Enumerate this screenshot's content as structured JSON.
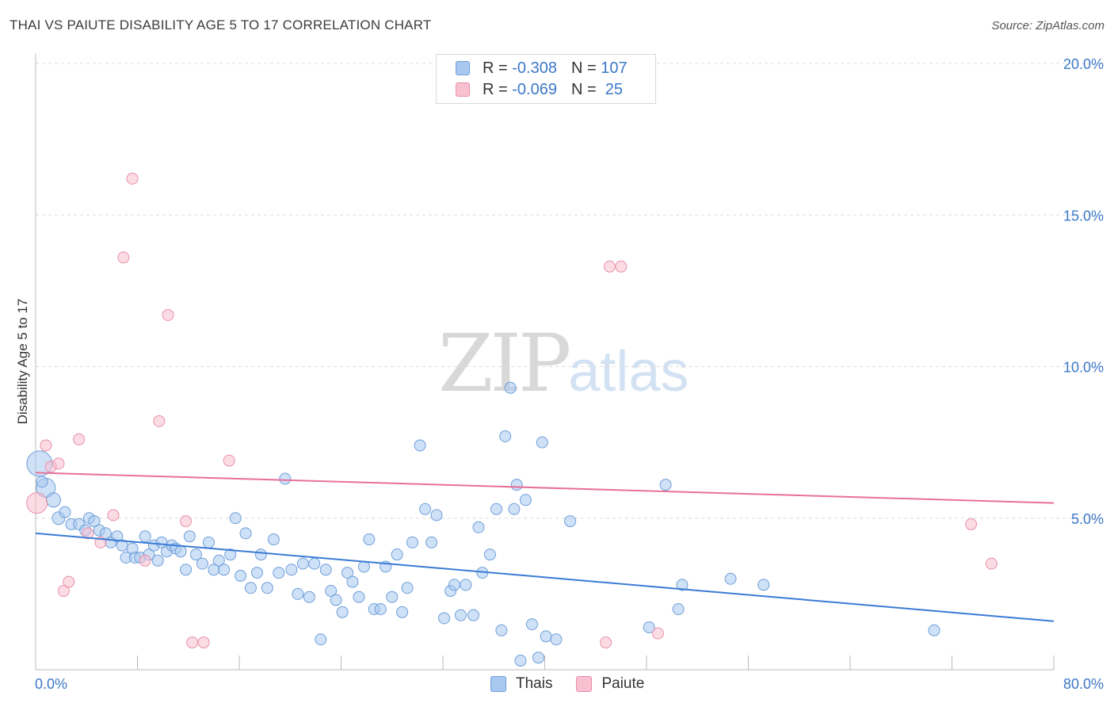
{
  "title": "THAI VS PAIUTE DISABILITY AGE 5 TO 17 CORRELATION CHART",
  "source": "Source: ZipAtlas.com",
  "watermark": {
    "zip": "ZIP",
    "atlas": "atlas"
  },
  "legend": {
    "rows": [
      {
        "r_label": "R = ",
        "r_value": "-0.308",
        "n_label": "N = ",
        "n_value": "107",
        "color": "#a8c8f0",
        "border": "#6f9fd8"
      },
      {
        "r_label": "R = ",
        "r_value": "-0.069",
        "n_label": "N = ",
        "n_value": " 25",
        "color": "#f8c0d0",
        "border": "#e890aa"
      }
    ]
  },
  "bottom_legend": [
    {
      "label": "Thais",
      "color": "#a8c8f0",
      "border": "#6f9fd8"
    },
    {
      "label": "Paiute",
      "color": "#f8c0d0",
      "border": "#e890aa"
    }
  ],
  "chart_data": {
    "type": "scatter",
    "title": "THAI VS PAIUTE DISABILITY AGE 5 TO 17 CORRELATION CHART",
    "xlabel": "",
    "ylabel": "Disability Age 5 to 17",
    "xlim": [
      0,
      80
    ],
    "ylim": [
      0,
      20
    ],
    "x_tick_labels": [
      "0.0%",
      "80.0%"
    ],
    "y_ticks": [
      5,
      10,
      15,
      20
    ],
    "y_tick_labels": [
      "5.0%",
      "10.0%",
      "15.0%",
      "20.0%"
    ],
    "grid": true,
    "colors": {
      "thais": "#3a7bd5",
      "paiute": "#e8709a"
    },
    "series": [
      {
        "name": "Thais",
        "trend": {
          "x": [
            0,
            80
          ],
          "y": [
            4.5,
            1.6
          ]
        },
        "points": [
          [
            0.3,
            6.8,
            16
          ],
          [
            0.8,
            6.0,
            12
          ],
          [
            1.4,
            5.6,
            9
          ],
          [
            1.8,
            5.0,
            8
          ],
          [
            2.3,
            5.2,
            7
          ],
          [
            2.8,
            4.8,
            7
          ],
          [
            3.4,
            4.8,
            7
          ],
          [
            3.9,
            4.6,
            7
          ],
          [
            4.2,
            5.0,
            7
          ],
          [
            4.6,
            4.9,
            7
          ],
          [
            5.0,
            4.6,
            7
          ],
          [
            5.5,
            4.5,
            7
          ],
          [
            5.9,
            4.2,
            7
          ],
          [
            6.4,
            4.4,
            7
          ],
          [
            6.8,
            4.1,
            7
          ],
          [
            7.1,
            3.7,
            7
          ],
          [
            7.6,
            4.0,
            7
          ],
          [
            7.8,
            3.7,
            7
          ],
          [
            8.2,
            3.7,
            7
          ],
          [
            8.6,
            4.4,
            7
          ],
          [
            8.9,
            3.8,
            7
          ],
          [
            9.3,
            4.1,
            7
          ],
          [
            9.6,
            3.6,
            7
          ],
          [
            9.9,
            4.2,
            7
          ],
          [
            10.3,
            3.9,
            7
          ],
          [
            10.7,
            4.1,
            7
          ],
          [
            11.0,
            4.0,
            7
          ],
          [
            11.4,
            3.9,
            7
          ],
          [
            11.8,
            3.3,
            7
          ],
          [
            12.1,
            4.4,
            7
          ],
          [
            12.6,
            3.8,
            7
          ],
          [
            13.1,
            3.5,
            7
          ],
          [
            13.6,
            4.2,
            7
          ],
          [
            14.0,
            3.3,
            7
          ],
          [
            14.4,
            3.6,
            7
          ],
          [
            14.8,
            3.3,
            7
          ],
          [
            15.3,
            3.8,
            7
          ],
          [
            15.7,
            5.0,
            7
          ],
          [
            16.1,
            3.1,
            7
          ],
          [
            16.5,
            4.5,
            7
          ],
          [
            16.9,
            2.7,
            7
          ],
          [
            17.4,
            3.2,
            7
          ],
          [
            17.7,
            3.8,
            7
          ],
          [
            18.2,
            2.7,
            7
          ],
          [
            18.7,
            4.3,
            7
          ],
          [
            19.1,
            3.2,
            7
          ],
          [
            19.6,
            6.3,
            7
          ],
          [
            20.1,
            3.3,
            7
          ],
          [
            20.6,
            2.5,
            7
          ],
          [
            21.0,
            3.5,
            7
          ],
          [
            21.5,
            2.4,
            7
          ],
          [
            21.9,
            3.5,
            7
          ],
          [
            22.4,
            1.0,
            7
          ],
          [
            22.8,
            3.3,
            7
          ],
          [
            23.2,
            2.6,
            7
          ],
          [
            23.6,
            2.3,
            7
          ],
          [
            24.1,
            1.9,
            7
          ],
          [
            24.5,
            3.2,
            7
          ],
          [
            24.9,
            2.9,
            7
          ],
          [
            25.4,
            2.4,
            7
          ],
          [
            25.8,
            3.4,
            7
          ],
          [
            26.2,
            4.3,
            7
          ],
          [
            26.6,
            2.0,
            7
          ],
          [
            27.1,
            2.0,
            7
          ],
          [
            27.5,
            3.4,
            7
          ],
          [
            28.0,
            2.4,
            7
          ],
          [
            28.4,
            3.8,
            7
          ],
          [
            28.8,
            1.9,
            7
          ],
          [
            29.2,
            2.7,
            7
          ],
          [
            29.6,
            4.2,
            7
          ],
          [
            30.2,
            7.4,
            7
          ],
          [
            30.6,
            5.3,
            7
          ],
          [
            31.1,
            4.2,
            7
          ],
          [
            31.5,
            5.1,
            7
          ],
          [
            32.1,
            1.7,
            7
          ],
          [
            32.6,
            2.6,
            7
          ],
          [
            32.9,
            2.8,
            7
          ],
          [
            33.4,
            1.8,
            7
          ],
          [
            33.8,
            2.8,
            7
          ],
          [
            34.4,
            1.8,
            7
          ],
          [
            34.8,
            4.7,
            7
          ],
          [
            35.1,
            3.2,
            7
          ],
          [
            35.7,
            3.8,
            7
          ],
          [
            36.2,
            5.3,
            7
          ],
          [
            36.6,
            1.3,
            7
          ],
          [
            36.9,
            7.7,
            7
          ],
          [
            37.3,
            9.3,
            7
          ],
          [
            37.6,
            5.3,
            7
          ],
          [
            37.8,
            6.1,
            7
          ],
          [
            38.1,
            0.3,
            7
          ],
          [
            38.5,
            5.6,
            7
          ],
          [
            39.0,
            1.5,
            7
          ],
          [
            39.5,
            0.4,
            7
          ],
          [
            39.8,
            7.5,
            7
          ],
          [
            40.1,
            1.1,
            7
          ],
          [
            40.9,
            1.0,
            7
          ],
          [
            42.0,
            4.9,
            7
          ],
          [
            48.2,
            1.4,
            7
          ],
          [
            49.5,
            6.1,
            7
          ],
          [
            50.5,
            2.0,
            7
          ],
          [
            50.8,
            2.8,
            7
          ],
          [
            54.6,
            3.0,
            7
          ],
          [
            57.2,
            2.8,
            7
          ],
          [
            70.6,
            1.3,
            7
          ],
          [
            0.5,
            6.2,
            7
          ]
        ]
      },
      {
        "name": "Paiute",
        "trend": {
          "x": [
            0,
            80
          ],
          "y": [
            6.5,
            5.5
          ]
        },
        "points": [
          [
            0.1,
            5.5,
            13
          ],
          [
            0.8,
            7.4,
            7
          ],
          [
            1.2,
            6.7,
            7
          ],
          [
            1.8,
            6.8,
            7
          ],
          [
            2.2,
            2.6,
            7
          ],
          [
            2.6,
            2.9,
            7
          ],
          [
            3.4,
            7.6,
            7
          ],
          [
            4.1,
            4.5,
            7
          ],
          [
            5.1,
            4.2,
            7
          ],
          [
            6.1,
            5.1,
            7
          ],
          [
            6.9,
            13.6,
            7
          ],
          [
            7.6,
            16.2,
            7
          ],
          [
            8.6,
            3.6,
            7
          ],
          [
            9.7,
            8.2,
            7
          ],
          [
            10.4,
            11.7,
            7
          ],
          [
            12.3,
            0.9,
            7
          ],
          [
            13.2,
            0.9,
            7
          ],
          [
            15.2,
            6.9,
            7
          ],
          [
            11.8,
            4.9,
            7
          ],
          [
            45.1,
            13.3,
            7
          ],
          [
            46.0,
            13.3,
            7
          ],
          [
            44.8,
            0.9,
            7
          ],
          [
            48.9,
            1.2,
            7
          ],
          [
            73.5,
            4.8,
            7
          ],
          [
            75.1,
            3.5,
            7
          ]
        ]
      }
    ]
  }
}
